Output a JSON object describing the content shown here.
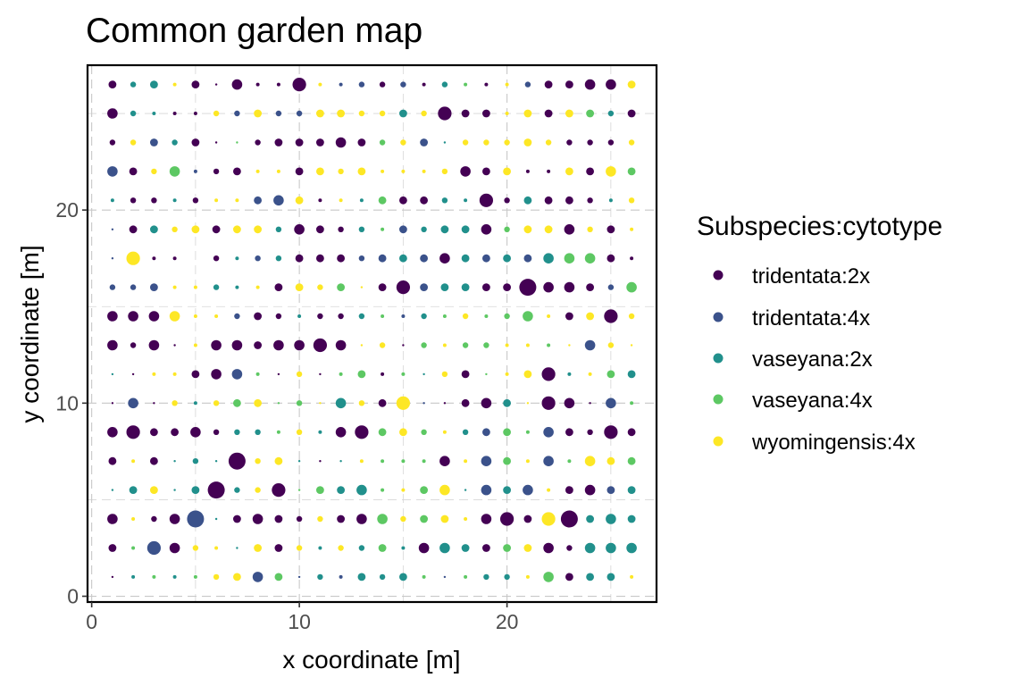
{
  "chart_data": {
    "type": "scatter",
    "title": "Common garden map",
    "xlabel": "x coordinate [m]",
    "ylabel": "y coordinate [m]",
    "xlim": [
      -0.2,
      27.2
    ],
    "ylim": [
      -0.3,
      27.5
    ],
    "x_ticks": [
      0,
      10,
      20
    ],
    "y_ticks": [
      0,
      10,
      20
    ],
    "x_minor": [
      5,
      15,
      25
    ],
    "y_minor": [
      5,
      15,
      25
    ],
    "grid": "dashed",
    "legend": {
      "title": "Subspecies:cytotype",
      "position": "right",
      "entries": [
        {
          "label": "tridentata:2x",
          "color": "#440154"
        },
        {
          "label": "tridentata:4x",
          "color": "#3B528B"
        },
        {
          "label": "vaseyana:2x",
          "color": "#21908C"
        },
        {
          "label": "vaseyana:4x",
          "color": "#5DC863"
        },
        {
          "label": "wyomingensis:4x",
          "color": "#FDE725"
        }
      ]
    },
    "point_size_levels": [
      1.2,
      2.0,
      3.2,
      4.4,
      5.8,
      7.6,
      9.5
    ],
    "rows_y": [
      1,
      2.5,
      4,
      5.5,
      7,
      8.5,
      10,
      11.5,
      13,
      14.5,
      16,
      17.5,
      19,
      20.5,
      22,
      23.5,
      25,
      26.5
    ],
    "columns_x": [
      1,
      2,
      3,
      4,
      5,
      6,
      7,
      8,
      9,
      10,
      11,
      12,
      13,
      14,
      15,
      16,
      17,
      18,
      19,
      20,
      21,
      22,
      23,
      24,
      25,
      26
    ],
    "grid_codes": [
      "0a1c1d1c1d2e3e4b3d0b2c1b3c2c3c1d0b1d2c2c1e4d3a3c3c1e",
      "3a1d5b4a2e1e0c3e3a2e1c2e2c3d1c4a4c3c3a3d3e4a2a4c4c4c",
      "4a1e2a4a6b0c3a4a3a2a2e3a4a4d2e3d3e1e4a5a3a5e6a3c4c3c",
      "0c3c3e0c3c6a2c2e5a0d3d3c4c1d1e3d4e0c4b3c4b1e3a4a3b3c",
      "3a1e3a0c2c0c6a2e3e0c0a0c1e1d1d1d4a1e4b3d1e4b1d4e3e3d",
      "4a5a3a3a4a2a2c2c1d2e1c4a5a3d3e2d1e2c3b3d1d4b3a2a5a3a",
      "0a4b0a2e1c2e3d3e0d2d0e4c2e3a5e0b0a3a4a3c0e5a4a0a4b1d",
      "0c0a1e1e3a4a4b1d0a2e0a1d3d1a1d0c2e3a0d1e3e5a1c1e3d3c",
      "4a2a4a0a1e4a4a3a4a4a5a4a0e2e0a2d1e2d2d1e1e1d0e4b2e0e",
      "4a4a4a4e1e1e2b3a2a1c2a2a2c1d1b2c1d2e1d2d4d1e3a3e5a2e",
      "2b2b3b1e1e2c1c1e3a3e2e3d0e3a5a3b3c3c3a3a6a4a4a3a2b4d",
      "0b5e1a1a7a2a1c2b2c3a3a3a2b3b3c3b4a3c3b3c3b4c4d4d3a1a",
      "0b3a3c2e3e3a3e3e2c4a3a2a2c1d3b2c3c3c4a2d3e3e4a2e3a1e",
      "1c2a2a1c2a1e1e3b4b3e1a1e1c3d3a3a2c1c5a2a3c3a3a2a1c2e",
      "4b3a2e4d1b2a3a1e1e3a3e2e3e1e1e1e2e4a3a3e1a1a3e3a4e3d",
      "2a2e3b2c3a0a0d2a3a3a3a4a3a2d2e3b0c2e2e2e3e2e2a2a2a2e",
      "4a2c1c1a1a2e2b3e2b2b3e3e2e2e3c2e5a3a3a1e3e3a3e3d2c3a",
      "3a2c3c1e3a0a4a1a1a5a1e1b2b2a2b1a2c1d1a1e2b3a3a4a4a3e"
    ]
  }
}
